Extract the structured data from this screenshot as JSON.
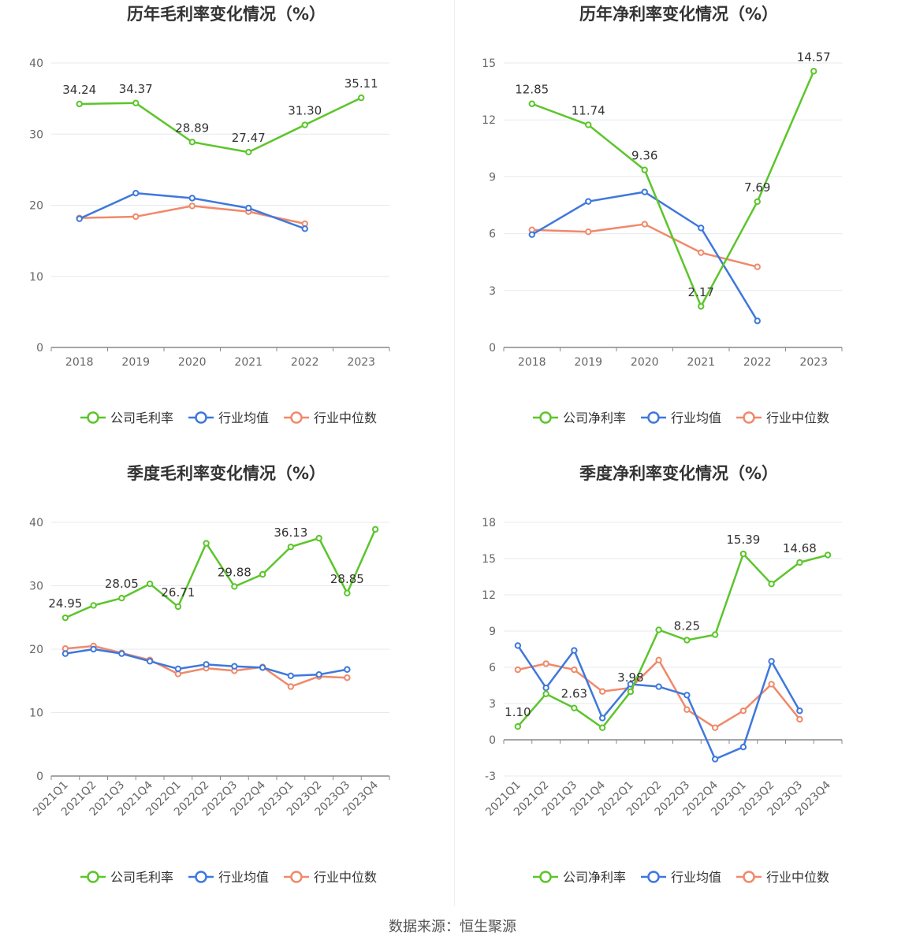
{
  "colors": {
    "company": "#5cc52b",
    "avg": "#3e78dc",
    "median": "#f0896a",
    "grid": "#e6e8ee",
    "axis": "#888888"
  },
  "footer": {
    "source": "数据来源：恒生聚源"
  },
  "chart_data": [
    {
      "type": "line",
      "title": "历年毛利率变化情况（%）",
      "categories": [
        "2018",
        "2019",
        "2020",
        "2021",
        "2022",
        "2023"
      ],
      "ylim": [
        0,
        40
      ],
      "yticks": [
        0,
        10,
        20,
        30,
        40
      ],
      "grid": true,
      "legend_position": "bottom",
      "series": [
        {
          "name": "公司毛利率",
          "role": "company",
          "values": [
            34.24,
            34.37,
            28.89,
            27.47,
            31.3,
            35.11
          ],
          "labels": [
            "34.24",
            "34.37",
            "28.89",
            "27.47",
            "31.30",
            "35.11"
          ]
        },
        {
          "name": "行业均值",
          "role": "avg",
          "values": [
            18.1,
            21.7,
            21.0,
            19.6,
            16.7,
            null
          ]
        },
        {
          "name": "行业中位数",
          "role": "median",
          "values": [
            18.2,
            18.4,
            19.9,
            19.1,
            17.4,
            null
          ]
        }
      ]
    },
    {
      "type": "line",
      "title": "历年净利率变化情况（%）",
      "categories": [
        "2018",
        "2019",
        "2020",
        "2021",
        "2022",
        "2023"
      ],
      "ylim": [
        0,
        15
      ],
      "yticks": [
        0,
        3,
        6,
        9,
        12,
        15
      ],
      "grid": true,
      "legend_position": "bottom",
      "series": [
        {
          "name": "公司净利率",
          "role": "company",
          "values": [
            12.85,
            11.74,
            9.36,
            2.17,
            7.69,
            14.57
          ],
          "labels": [
            "12.85",
            "11.74",
            "9.36",
            "2.17",
            "7.69",
            "14.57"
          ]
        },
        {
          "name": "行业均值",
          "role": "avg",
          "values": [
            5.95,
            7.7,
            8.2,
            6.3,
            1.4,
            null
          ]
        },
        {
          "name": "行业中位数",
          "role": "median",
          "values": [
            6.2,
            6.1,
            6.5,
            5.0,
            4.25,
            null
          ]
        }
      ]
    },
    {
      "type": "line",
      "title": "季度毛利率变化情况（%）",
      "categories": [
        "2021Q1",
        "2021Q2",
        "2021Q3",
        "2021Q4",
        "2022Q1",
        "2022Q2",
        "2022Q3",
        "2022Q4",
        "2023Q1",
        "2023Q2",
        "2023Q3",
        "2023Q4"
      ],
      "ylim": [
        0,
        40
      ],
      "yticks": [
        0,
        10,
        20,
        30,
        40
      ],
      "grid": true,
      "legend_position": "bottom",
      "series": [
        {
          "name": "公司毛利率",
          "role": "company",
          "values": [
            24.95,
            26.9,
            28.05,
            30.3,
            26.71,
            36.7,
            29.88,
            31.8,
            36.13,
            37.5,
            28.85,
            38.9
          ],
          "labels": [
            "24.95",
            "",
            "28.05",
            "",
            "26.71",
            "",
            "29.88",
            "",
            "36.13",
            "",
            "28.85",
            ""
          ]
        },
        {
          "name": "行业均值",
          "role": "avg",
          "values": [
            19.3,
            20.0,
            19.3,
            18.1,
            16.9,
            17.6,
            17.3,
            17.1,
            15.8,
            16.0,
            16.8,
            null
          ]
        },
        {
          "name": "行业中位数",
          "role": "median",
          "values": [
            20.1,
            20.5,
            19.4,
            18.3,
            16.1,
            17.0,
            16.6,
            17.2,
            14.1,
            15.7,
            15.5,
            null
          ]
        }
      ]
    },
    {
      "type": "line",
      "title": "季度净利率变化情况（%）",
      "categories": [
        "2021Q1",
        "2021Q2",
        "2021Q3",
        "2021Q4",
        "2022Q1",
        "2022Q2",
        "2022Q3",
        "2022Q4",
        "2023Q1",
        "2023Q2",
        "2023Q3",
        "2023Q4"
      ],
      "ylim": [
        -3,
        18
      ],
      "yticks": [
        -3,
        0,
        3,
        6,
        9,
        12,
        15,
        18
      ],
      "grid": true,
      "legend_position": "bottom",
      "series": [
        {
          "name": "公司净利率",
          "role": "company",
          "values": [
            1.1,
            3.8,
            2.63,
            1.0,
            3.98,
            9.1,
            8.25,
            8.7,
            15.39,
            12.9,
            14.68,
            15.3
          ],
          "labels": [
            "1.10",
            "",
            "2.63",
            "",
            "3.98",
            "",
            "8.25",
            "",
            "15.39",
            "",
            "14.68",
            ""
          ]
        },
        {
          "name": "行业均值",
          "role": "avg",
          "values": [
            7.8,
            4.3,
            7.4,
            1.8,
            4.6,
            4.4,
            3.7,
            -1.6,
            -0.6,
            6.5,
            2.4,
            null
          ]
        },
        {
          "name": "行业中位数",
          "role": "median",
          "values": [
            5.8,
            6.3,
            5.8,
            4.0,
            4.3,
            6.6,
            2.5,
            1.0,
            2.4,
            4.6,
            1.7,
            null
          ]
        }
      ]
    }
  ]
}
